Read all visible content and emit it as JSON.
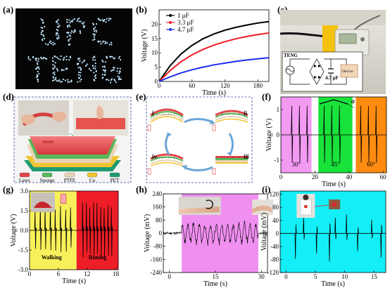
{
  "panels": {
    "a": {
      "label": "(a)",
      "line1": "UPC",
      "line2": "TENG"
    },
    "b": {
      "label": "(b)"
    },
    "c": {
      "label": "(c)",
      "circuit_title": "TENG",
      "cap_label": "4.7 μF",
      "device_label": "Device"
    },
    "d": {
      "label": "(d)",
      "materials": [
        "Latex",
        "Sponge",
        "PTFE",
        "Cu",
        "PET"
      ],
      "material_colors": [
        "#e2454b",
        "#58b85a",
        "#e9d3b4",
        "#f0c531",
        "#1f9a73"
      ]
    },
    "e": {
      "label": "(e)",
      "steps": [
        "i",
        "ii",
        "iii",
        "iv"
      ]
    },
    "f": {
      "label": "(f)",
      "angle_symbol": "α",
      "angle_labels": [
        "30°",
        "45°",
        "60°"
      ],
      "region_colors": [
        "#f39af2",
        "#19e23a",
        "#ff8c10"
      ]
    },
    "g": {
      "label": "(g)",
      "region_labels": [
        "Walking",
        "Runing"
      ],
      "region_colors": [
        "#f8f05a",
        "#ee1e26"
      ]
    },
    "h": {
      "label": "(h)",
      "region_color": "#ef8ff0"
    },
    "i": {
      "label": "(i)",
      "background": "#14eef6"
    }
  },
  "chart_data": [
    {
      "id": "b",
      "type": "line",
      "xlabel": "Time (s)",
      "ylabel": "Voltage (V)",
      "xlim": [
        0,
        200
      ],
      "ylim": [
        0,
        25
      ],
      "xticks": [
        0,
        60,
        120,
        180
      ],
      "yticks": [
        0,
        5,
        10,
        15,
        20
      ],
      "x": [
        0,
        20,
        40,
        60,
        80,
        100,
        120,
        140,
        160,
        180,
        200
      ],
      "series": [
        {
          "name": "1 μF",
          "color": "#000000",
          "values": [
            0,
            5.5,
            9.6,
            12.6,
            14.9,
            16.6,
            17.9,
            18.9,
            19.7,
            20.4,
            20.9
          ]
        },
        {
          "name": "3.3 μF",
          "color": "#ee1c24",
          "values": [
            0,
            3.8,
            6.9,
            9.3,
            11.2,
            12.7,
            13.9,
            14.9,
            15.7,
            16.4,
            16.9
          ]
        },
        {
          "name": "4.7 μF",
          "color": "#1c2cf0",
          "values": [
            0,
            1.6,
            3.0,
            4.1,
            5.0,
            5.8,
            6.4,
            7.0,
            7.5,
            7.9,
            8.3
          ]
        }
      ],
      "legend": "top-left"
    },
    {
      "id": "f",
      "type": "line",
      "xlabel": "Time (s)",
      "ylabel": "Voltage (V)",
      "xlim": [
        0,
        62
      ],
      "ylim": [
        -1.5,
        1.5
      ],
      "xticks": [
        0,
        20,
        40,
        60
      ],
      "yticks": [
        -1,
        0,
        1
      ],
      "spikes_t": [
        6.5,
        11.0,
        15.5,
        25.5,
        30.0,
        34.5,
        47.0,
        51.5,
        56.0
      ],
      "amplitude": [
        -1.1,
        1.15
      ]
    },
    {
      "id": "g",
      "type": "line",
      "xlabel": "Time (s)",
      "ylabel": "Voltage (V)",
      "xlim": [
        0,
        18.5
      ],
      "ylim": [
        -3.0,
        3.0
      ],
      "xticks": [
        0,
        6,
        12,
        18
      ],
      "yticks": [
        -3.0,
        -1.5,
        0.0,
        1.5,
        3.0
      ],
      "walking_spikes_t": [
        1.2,
        2.3,
        3.3,
        4.4,
        5.4,
        6.5,
        7.6,
        8.6
      ],
      "running_spikes_t": [
        11.1,
        11.9,
        12.6,
        13.4,
        14.1,
        14.9,
        15.6,
        16.4,
        17.1
      ]
    },
    {
      "id": "h",
      "type": "line",
      "xlabel": "Time (s)",
      "ylabel": "Voltage (mV)",
      "xlim": [
        -2,
        32
      ],
      "ylim": [
        -240,
        240
      ],
      "xticks": [
        0,
        15,
        30
      ],
      "yticks": [
        -240,
        -160,
        -80,
        0,
        80,
        160,
        240
      ],
      "active_range": [
        4,
        29
      ]
    },
    {
      "id": "i",
      "type": "line",
      "xlabel": "Time (s)",
      "ylabel": "Voltage (mV)",
      "xlim": [
        -1,
        17
      ],
      "ylim": [
        -120,
        130
      ],
      "xticks": [
        0,
        5,
        10,
        15
      ],
      "yticks": [
        -120,
        -80,
        -40,
        0,
        40,
        80,
        120
      ],
      "spikes_t": [
        1.6,
        3.0,
        5.2,
        7.4,
        8.4,
        10.3,
        12.2,
        14.6,
        16.2
      ],
      "spikes_amp": [
        -78,
        52,
        -62,
        -86,
        48,
        58,
        -54,
        42,
        -74
      ]
    }
  ]
}
